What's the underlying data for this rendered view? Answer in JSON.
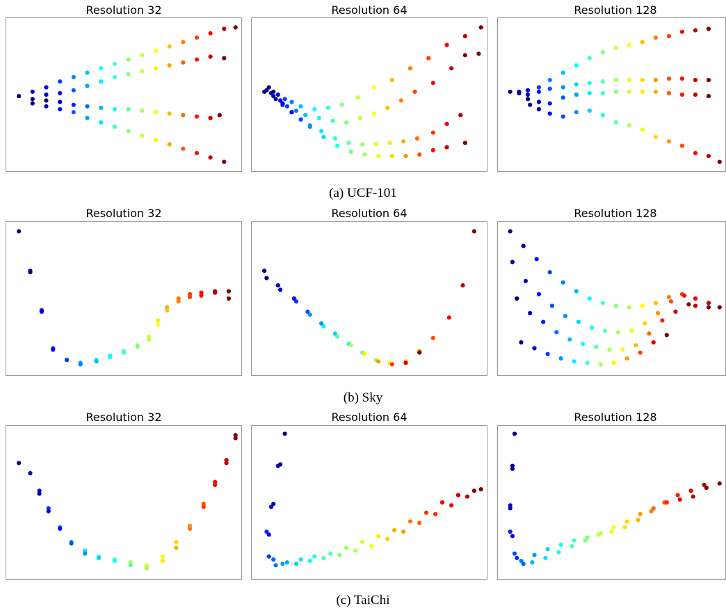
{
  "captions": [
    "(a) UCF-101",
    "(b) Sky",
    "(c) TaiChi"
  ],
  "chart_data": [
    {
      "type": "scatter",
      "dataset": "UCF-101",
      "title": "Resolution 32",
      "xlabel": "",
      "ylabel": "",
      "grid": false,
      "color_scale": "jet",
      "series": [
        {
          "x": [
            0.04,
            0.1,
            0.16,
            0.22,
            0.28,
            0.34,
            0.4,
            0.46,
            0.52,
            0.58,
            0.64,
            0.7,
            0.76,
            0.82,
            0.88,
            0.94,
            0.99
          ],
          "y": [
            0.49,
            0.52,
            0.55,
            0.59,
            0.62,
            0.65,
            0.68,
            0.71,
            0.74,
            0.77,
            0.8,
            0.83,
            0.86,
            0.89,
            0.92,
            0.95,
            0.96
          ]
        },
        {
          "x": [
            0.1,
            0.16,
            0.22,
            0.28,
            0.34,
            0.4,
            0.46,
            0.52,
            0.58,
            0.64,
            0.7,
            0.76,
            0.82,
            0.88,
            0.94
          ],
          "y": [
            0.47,
            0.5,
            0.51,
            0.53,
            0.56,
            0.59,
            0.62,
            0.64,
            0.66,
            0.68,
            0.7,
            0.72,
            0.74,
            0.76,
            0.75
          ]
        },
        {
          "x": [
            0.16,
            0.22,
            0.28,
            0.34,
            0.4,
            0.46,
            0.52,
            0.58,
            0.64,
            0.7,
            0.76,
            0.82,
            0.88,
            0.92
          ],
          "y": [
            0.46,
            0.45,
            0.43,
            0.42,
            0.41,
            0.4,
            0.4,
            0.39,
            0.38,
            0.37,
            0.36,
            0.35,
            0.34,
            0.36
          ]
        },
        {
          "x": [
            0.1,
            0.16,
            0.22,
            0.28,
            0.34,
            0.4,
            0.46,
            0.52,
            0.58,
            0.64,
            0.7,
            0.76,
            0.82,
            0.88,
            0.94
          ],
          "y": [
            0.44,
            0.42,
            0.4,
            0.38,
            0.34,
            0.31,
            0.28,
            0.25,
            0.22,
            0.19,
            0.16,
            0.13,
            0.1,
            0.07,
            0.04
          ]
        }
      ]
    },
    {
      "type": "scatter",
      "dataset": "UCF-101",
      "title": "Resolution 64",
      "xlabel": "",
      "ylabel": "",
      "grid": false,
      "color_scale": "jet",
      "series": [
        {
          "x": [
            0.04,
            0.07,
            0.1,
            0.13,
            0.16,
            0.2,
            0.26,
            0.32,
            0.38,
            0.45,
            0.52,
            0.6,
            0.68,
            0.76,
            0.84,
            0.92,
            0.99
          ],
          "y": [
            0.52,
            0.51,
            0.5,
            0.47,
            0.45,
            0.42,
            0.4,
            0.41,
            0.43,
            0.48,
            0.55,
            0.6,
            0.68,
            0.75,
            0.84,
            0.9,
            0.96
          ]
        },
        {
          "x": [
            0.05,
            0.08,
            0.11,
            0.14,
            0.18,
            0.22,
            0.28,
            0.34,
            0.4,
            0.46,
            0.52,
            0.58,
            0.64,
            0.7,
            0.78,
            0.86,
            0.92
          ],
          "y": [
            0.53,
            0.49,
            0.46,
            0.42,
            0.39,
            0.36,
            0.34,
            0.32,
            0.31,
            0.34,
            0.37,
            0.41,
            0.46,
            0.52,
            0.58,
            0.68,
            0.77
          ]
        },
        {
          "x": [
            0.06,
            0.09,
            0.12,
            0.16,
            0.2,
            0.24,
            0.29,
            0.35,
            0.41,
            0.47,
            0.53,
            0.59,
            0.65,
            0.71,
            0.78,
            0.84,
            0.9,
            0.98
          ],
          "y": [
            0.55,
            0.47,
            0.43,
            0.38,
            0.33,
            0.29,
            0.25,
            0.2,
            0.17,
            0.16,
            0.16,
            0.17,
            0.18,
            0.2,
            0.24,
            0.3,
            0.36,
            0.78
          ]
        },
        {
          "x": [
            0.08,
            0.12,
            0.16,
            0.2,
            0.24,
            0.3,
            0.36,
            0.42,
            0.48,
            0.54,
            0.6,
            0.66,
            0.72,
            0.78,
            0.84,
            0.92
          ],
          "y": [
            0.52,
            0.44,
            0.38,
            0.33,
            0.28,
            0.21,
            0.15,
            0.11,
            0.09,
            0.08,
            0.08,
            0.08,
            0.09,
            0.12,
            0.14,
            0.17
          ]
        }
      ]
    },
    {
      "type": "scatter",
      "dataset": "UCF-101",
      "title": "Resolution 128",
      "xlabel": "",
      "ylabel": "",
      "grid": false,
      "color_scale": "jet",
      "series": [
        {
          "x": [
            0.04,
            0.08,
            0.12,
            0.17,
            0.22,
            0.28,
            0.34,
            0.4,
            0.46,
            0.52,
            0.58,
            0.64,
            0.7,
            0.76,
            0.82,
            0.88,
            0.94
          ],
          "y": [
            0.52,
            0.52,
            0.53,
            0.55,
            0.6,
            0.65,
            0.7,
            0.75,
            0.79,
            0.82,
            0.84,
            0.86,
            0.89,
            0.9,
            0.93,
            0.94,
            0.95
          ]
        },
        {
          "x": [
            0.08,
            0.12,
            0.17,
            0.22,
            0.28,
            0.34,
            0.4,
            0.46,
            0.52,
            0.58,
            0.64,
            0.7,
            0.76,
            0.82,
            0.88,
            0.94
          ],
          "y": [
            0.51,
            0.5,
            0.52,
            0.54,
            0.55,
            0.57,
            0.58,
            0.59,
            0.6,
            0.6,
            0.6,
            0.6,
            0.61,
            0.61,
            0.6,
            0.6
          ]
        },
        {
          "x": [
            0.12,
            0.17,
            0.22,
            0.28,
            0.34,
            0.4,
            0.46,
            0.52,
            0.58,
            0.64,
            0.7,
            0.76,
            0.82,
            0.88,
            0.94
          ],
          "y": [
            0.47,
            0.45,
            0.44,
            0.48,
            0.5,
            0.51,
            0.51,
            0.52,
            0.52,
            0.52,
            0.52,
            0.51,
            0.5,
            0.5,
            0.49
          ]
        },
        {
          "x": [
            0.13,
            0.17,
            0.22,
            0.28,
            0.34,
            0.4,
            0.46,
            0.52,
            0.58,
            0.64,
            0.7,
            0.76,
            0.82,
            0.88,
            0.94,
            0.99
          ],
          "y": [
            0.43,
            0.4,
            0.37,
            0.35,
            0.38,
            0.39,
            0.36,
            0.31,
            0.29,
            0.26,
            0.21,
            0.18,
            0.15,
            0.1,
            0.08,
            0.04
          ]
        }
      ]
    },
    {
      "type": "scatter",
      "dataset": "Sky",
      "title": "Resolution 32",
      "xlabel": "",
      "ylabel": "",
      "grid": false,
      "color_scale": "jet",
      "series": [
        {
          "x": [
            0.04,
            0.09,
            0.14,
            0.19,
            0.25,
            0.31,
            0.38,
            0.44,
            0.5,
            0.56,
            0.61,
            0.65,
            0.69,
            0.74,
            0.79,
            0.84,
            0.9,
            0.96
          ],
          "y": [
            0.96,
            0.69,
            0.42,
            0.16,
            0.08,
            0.06,
            0.08,
            0.11,
            0.14,
            0.18,
            0.24,
            0.35,
            0.44,
            0.5,
            0.53,
            0.54,
            0.55,
            0.55
          ]
        },
        {
          "x": [
            0.09,
            0.14,
            0.19,
            0.25,
            0.31,
            0.38,
            0.44,
            0.5,
            0.56,
            0.61,
            0.65,
            0.69,
            0.74,
            0.79,
            0.84,
            0.9,
            0.96
          ],
          "y": [
            0.68,
            0.41,
            0.15,
            0.08,
            0.05,
            0.07,
            0.1,
            0.13,
            0.17,
            0.22,
            0.32,
            0.42,
            0.48,
            0.51,
            0.52,
            0.54,
            0.5
          ]
        }
      ]
    },
    {
      "type": "scatter",
      "dataset": "Sky",
      "title": "Resolution 64",
      "xlabel": "",
      "ylabel": "",
      "grid": false,
      "color_scale": "jet",
      "series": [
        {
          "x": [
            0.04,
            0.1,
            0.17,
            0.23,
            0.29,
            0.35,
            0.41,
            0.47,
            0.53,
            0.59,
            0.66,
            0.72,
            0.78,
            0.85,
            0.91,
            0.96
          ],
          "y": [
            0.69,
            0.59,
            0.5,
            0.41,
            0.33,
            0.26,
            0.19,
            0.13,
            0.08,
            0.06,
            0.07,
            0.14,
            0.23,
            0.37,
            0.59,
            0.96
          ]
        },
        {
          "x": [
            0.05,
            0.11,
            0.18,
            0.24,
            0.3,
            0.36,
            0.42,
            0.48,
            0.54,
            0.6,
            0.66,
            0.72
          ],
          "y": [
            0.64,
            0.56,
            0.48,
            0.39,
            0.31,
            0.24,
            0.18,
            0.12,
            0.07,
            0.05,
            0.06,
            0.13
          ]
        }
      ]
    },
    {
      "type": "scatter",
      "dataset": "Sky",
      "title": "Resolution 128",
      "xlabel": "",
      "ylabel": "",
      "grid": false,
      "color_scale": "jet",
      "series": [
        {
          "x": [
            0.04,
            0.1,
            0.16,
            0.22,
            0.28,
            0.34,
            0.4,
            0.46,
            0.52,
            0.58,
            0.64,
            0.7,
            0.76,
            0.82,
            0.88,
            0.94,
            0.99
          ],
          "y": [
            0.96,
            0.86,
            0.77,
            0.68,
            0.61,
            0.55,
            0.5,
            0.47,
            0.45,
            0.44,
            0.45,
            0.47,
            0.51,
            0.53,
            0.5,
            0.47,
            0.44
          ]
        },
        {
          "x": [
            0.05,
            0.11,
            0.17,
            0.23,
            0.29,
            0.35,
            0.41,
            0.47,
            0.53,
            0.59,
            0.65,
            0.71,
            0.77,
            0.83,
            0.88,
            0.94
          ],
          "y": [
            0.75,
            0.62,
            0.53,
            0.45,
            0.38,
            0.34,
            0.3,
            0.28,
            0.27,
            0.28,
            0.33,
            0.4,
            0.48,
            0.52,
            0.45,
            0.44
          ]
        },
        {
          "x": [
            0.07,
            0.13,
            0.19,
            0.25,
            0.31,
            0.37,
            0.43,
            0.49,
            0.55,
            0.61,
            0.67,
            0.73,
            0.79,
            0.85
          ],
          "y": [
            0.5,
            0.4,
            0.34,
            0.27,
            0.22,
            0.19,
            0.17,
            0.15,
            0.15,
            0.18,
            0.26,
            0.35,
            0.41,
            0.46
          ]
        },
        {
          "x": [
            0.09,
            0.15,
            0.21,
            0.27,
            0.33,
            0.39,
            0.45,
            0.51,
            0.57,
            0.63,
            0.69,
            0.75
          ],
          "y": [
            0.2,
            0.16,
            0.12,
            0.09,
            0.07,
            0.06,
            0.05,
            0.06,
            0.09,
            0.13,
            0.2,
            0.25
          ]
        }
      ]
    },
    {
      "type": "scatter",
      "dataset": "TaiChi",
      "title": "Resolution 32",
      "xlabel": "",
      "ylabel": "",
      "grid": false,
      "color_scale": "jet",
      "series": [
        {
          "x": [
            0.04,
            0.09,
            0.13,
            0.17,
            0.22,
            0.27,
            0.33,
            0.39,
            0.46,
            0.53,
            0.6,
            0.67,
            0.73,
            0.79,
            0.85,
            0.9,
            0.95,
            0.99
          ],
          "y": [
            0.77,
            0.7,
            0.58,
            0.46,
            0.33,
            0.23,
            0.17,
            0.13,
            0.11,
            0.09,
            0.07,
            0.1,
            0.19,
            0.32,
            0.47,
            0.62,
            0.77,
            0.94
          ]
        },
        {
          "x": [
            0.13,
            0.17,
            0.22,
            0.27,
            0.33,
            0.39,
            0.46,
            0.53,
            0.6,
            0.67,
            0.73,
            0.79,
            0.85,
            0.9,
            0.95,
            0.99
          ],
          "y": [
            0.56,
            0.44,
            0.32,
            0.22,
            0.15,
            0.12,
            0.1,
            0.07,
            0.05,
            0.13,
            0.23,
            0.34,
            0.49,
            0.64,
            0.79,
            0.96
          ]
        }
      ]
    },
    {
      "type": "scatter",
      "dataset": "TaiChi",
      "title": "Resolution 64",
      "xlabel": "",
      "ylabel": "",
      "grid": false,
      "color_scale": "jet",
      "series": [
        {
          "x": [
            0.13,
            0.1,
            0.07,
            0.05,
            0.08,
            0.12,
            0.18,
            0.24,
            0.3,
            0.37,
            0.44,
            0.51,
            0.58,
            0.65,
            0.72,
            0.79,
            0.86,
            0.93,
            0.99
          ],
          "y": [
            0.97,
            0.75,
            0.47,
            0.3,
            0.11,
            0.08,
            0.08,
            0.1,
            0.12,
            0.14,
            0.17,
            0.2,
            0.25,
            0.3,
            0.36,
            0.42,
            0.48,
            0.54,
            0.59
          ]
        },
        {
          "x": [
            0.11,
            0.08,
            0.06,
            0.06,
            0.09,
            0.14,
            0.2,
            0.26,
            0.33,
            0.4,
            0.47,
            0.54,
            0.61,
            0.68,
            0.75,
            0.82,
            0.89,
            0.96
          ],
          "y": [
            0.76,
            0.49,
            0.28,
            0.13,
            0.07,
            0.09,
            0.11,
            0.13,
            0.15,
            0.19,
            0.23,
            0.27,
            0.31,
            0.37,
            0.43,
            0.5,
            0.55,
            0.58
          ]
        }
      ]
    },
    {
      "type": "scatter",
      "dataset": "TaiChi",
      "title": "Resolution 128",
      "xlabel": "",
      "ylabel": "",
      "grid": false,
      "color_scale": "jet",
      "series": [
        {
          "x": [
            0.06,
            0.05,
            0.04,
            0.04,
            0.06,
            0.09,
            0.14,
            0.2,
            0.26,
            0.32,
            0.38,
            0.44,
            0.5,
            0.56,
            0.62,
            0.68,
            0.74,
            0.8,
            0.86,
            0.92,
            0.99
          ],
          "y": [
            0.97,
            0.73,
            0.48,
            0.3,
            0.15,
            0.1,
            0.09,
            0.12,
            0.16,
            0.2,
            0.24,
            0.28,
            0.3,
            0.33,
            0.38,
            0.44,
            0.5,
            0.55,
            0.58,
            0.62,
            0.63
          ]
        },
        {
          "x": [
            0.05,
            0.04,
            0.05,
            0.07,
            0.1,
            0.15,
            0.21,
            0.27,
            0.33,
            0.39,
            0.45,
            0.51,
            0.57,
            0.63,
            0.69,
            0.75,
            0.81,
            0.87,
            0.93
          ],
          "y": [
            0.75,
            0.46,
            0.27,
            0.12,
            0.08,
            0.14,
            0.18,
            0.21,
            0.24,
            0.26,
            0.29,
            0.33,
            0.37,
            0.42,
            0.46,
            0.5,
            0.52,
            0.54,
            0.6
          ]
        }
      ]
    }
  ]
}
